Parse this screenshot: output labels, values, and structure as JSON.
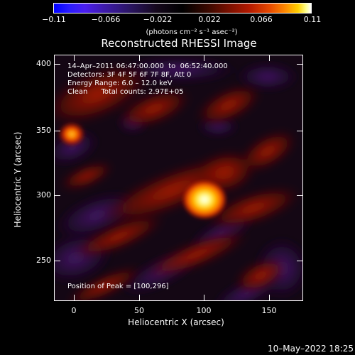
{
  "colorbar": {
    "ticks": [
      "−0.11",
      "−0.066",
      "−0.022",
      "0.022",
      "0.066",
      "0.11"
    ],
    "units": "(photons cm⁻² s⁻¹ asec⁻²)"
  },
  "title": "Reconstructed RHESSI Image",
  "annotations": {
    "time_range": "14–Apr–2011 06:47:00.000  to  06:52:40.000",
    "detectors": "Detectors: 3F 4F 5F 6F 7F 8F, Att 0",
    "energy": "Energy Range: 6.0 – 12.0 keV",
    "method": "Clean      Total counts: 2.97E+05",
    "peak": "Position of Peak = [100,296]"
  },
  "axes": {
    "xlabel": "Heliocentric X (arcsec)",
    "ylabel": "Heliocentric Y (arcsec)",
    "xticks": [
      "0",
      "50",
      "100",
      "150"
    ],
    "yticks": [
      "400",
      "350",
      "300",
      "250"
    ]
  },
  "timestamp": "10–May–2022 18:25",
  "chart_data": {
    "type": "heatmap",
    "title": "Reconstructed RHESSI Image",
    "xlabel": "Heliocentric X (arcsec)",
    "ylabel": "Heliocentric Y (arcsec)",
    "xlim": [
      -15,
      175
    ],
    "ylim": [
      216,
      410
    ],
    "colorbar_range": [
      -0.11,
      0.11
    ],
    "colorbar_units": "(photons cm⁻² s⁻¹ asec⁻²)",
    "peak_position": [
      100,
      296
    ],
    "sources": [
      {
        "x": 100,
        "y": 296,
        "intensity": 0.11
      },
      {
        "x": -2,
        "y": 349,
        "intensity": 0.07
      }
    ],
    "colors": {
      "negative": "#0000ff",
      "zero": "#000000",
      "positive_mid": "#b31900",
      "positive_high": "#ffd000",
      "max": "#ffffff"
    }
  }
}
